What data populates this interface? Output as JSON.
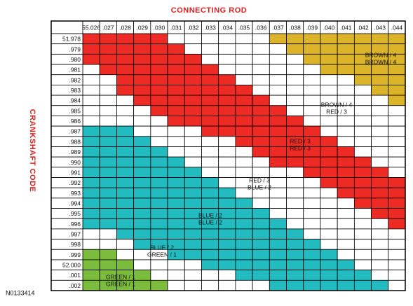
{
  "title": "CONNECTING ROD",
  "side_title": "CRANKSHAFT CODE",
  "figure_id": "N0133414",
  "palette": {
    "red": "#ee2a24",
    "brown": "#dcb42a",
    "blue": "#22bcc0",
    "green": "#7cbc3c",
    "white": "#ffffff"
  },
  "columns": [
    "55.026",
    ".027",
    ".028",
    ".029",
    ".030",
    ".031",
    ".032",
    ".033",
    ".034",
    ".035",
    ".036",
    ".037",
    ".038",
    ".039",
    ".040",
    ".041",
    ".042",
    ".043",
    ".044"
  ],
  "rows": [
    {
      "label": "51.978",
      "cells": [
        "red",
        "red",
        "red",
        "red",
        "red",
        "white",
        "white",
        "white",
        "white",
        "white",
        "white",
        "brown",
        "brown",
        "brown",
        "brown",
        "brown",
        "brown",
        "brown",
        "brown"
      ]
    },
    {
      "label": ".979",
      "cells": [
        "red",
        "red",
        "red",
        "red",
        "red",
        "red",
        "white",
        "white",
        "white",
        "white",
        "white",
        "white",
        "brown",
        "brown",
        "brown",
        "brown",
        "brown",
        "brown",
        "brown"
      ]
    },
    {
      "label": ".980",
      "cells": [
        "red",
        "red",
        "red",
        "red",
        "red",
        "red",
        "red",
        "white",
        "white",
        "white",
        "white",
        "white",
        "white",
        "brown",
        "brown",
        "brown",
        "brown",
        "brown",
        "brown"
      ]
    },
    {
      "label": ".981",
      "cells": [
        "white",
        "red",
        "red",
        "red",
        "red",
        "red",
        "red",
        "red",
        "white",
        "white",
        "white",
        "white",
        "white",
        "white",
        "brown",
        "brown",
        "brown",
        "brown",
        "brown"
      ]
    },
    {
      "label": ".982",
      "cells": [
        "white",
        "white",
        "red",
        "red",
        "red",
        "red",
        "red",
        "red",
        "red",
        "white",
        "white",
        "white",
        "white",
        "white",
        "white",
        "white",
        "brown",
        "brown",
        "brown"
      ]
    },
    {
      "label": ".983",
      "cells": [
        "white",
        "white",
        "red",
        "red",
        "red",
        "red",
        "red",
        "red",
        "red",
        "red",
        "white",
        "white",
        "white",
        "white",
        "white",
        "white",
        "white",
        "brown",
        "brown"
      ]
    },
    {
      "label": ".984",
      "cells": [
        "white",
        "white",
        "white",
        "red",
        "red",
        "red",
        "red",
        "red",
        "red",
        "red",
        "red",
        "white",
        "white",
        "white",
        "white",
        "white",
        "white",
        "white",
        "brown"
      ]
    },
    {
      "label": ".985",
      "cells": [
        "white",
        "white",
        "white",
        "white",
        "red",
        "red",
        "red",
        "red",
        "red",
        "red",
        "red",
        "red",
        "white",
        "white",
        "white",
        "white",
        "white",
        "white",
        "white"
      ]
    },
    {
      "label": ".986",
      "cells": [
        "white",
        "white",
        "white",
        "white",
        "white",
        "red",
        "red",
        "red",
        "red",
        "red",
        "red",
        "red",
        "red",
        "white",
        "white",
        "white",
        "white",
        "white",
        "white"
      ]
    },
    {
      "label": ".987",
      "cells": [
        "blue",
        "blue",
        "blue",
        "white",
        "white",
        "white",
        "white",
        "red",
        "red",
        "red",
        "red",
        "red",
        "red",
        "red",
        "white",
        "white",
        "white",
        "white",
        "white"
      ]
    },
    {
      "label": ".988",
      "cells": [
        "blue",
        "blue",
        "blue",
        "blue",
        "white",
        "white",
        "white",
        "white",
        "white",
        "red",
        "red",
        "red",
        "red",
        "red",
        "red",
        "white",
        "white",
        "white",
        "white"
      ]
    },
    {
      "label": ".989",
      "cells": [
        "blue",
        "blue",
        "blue",
        "blue",
        "blue",
        "white",
        "white",
        "white",
        "white",
        "white",
        "red",
        "red",
        "red",
        "red",
        "red",
        "red",
        "white",
        "white",
        "white"
      ]
    },
    {
      "label": ".990",
      "cells": [
        "blue",
        "blue",
        "blue",
        "blue",
        "blue",
        "blue",
        "white",
        "white",
        "white",
        "white",
        "white",
        "red",
        "red",
        "red",
        "red",
        "red",
        "red",
        "white",
        "white"
      ]
    },
    {
      "label": ".991",
      "cells": [
        "blue",
        "blue",
        "blue",
        "blue",
        "blue",
        "blue",
        "blue",
        "white",
        "white",
        "white",
        "white",
        "white",
        "white",
        "red",
        "red",
        "red",
        "red",
        "red",
        "white"
      ]
    },
    {
      "label": ".992",
      "cells": [
        "blue",
        "blue",
        "blue",
        "blue",
        "blue",
        "blue",
        "blue",
        "blue",
        "white",
        "white",
        "white",
        "white",
        "white",
        "white",
        "red",
        "red",
        "red",
        "red",
        "red"
      ]
    },
    {
      "label": ".993",
      "cells": [
        "blue",
        "blue",
        "blue",
        "blue",
        "blue",
        "blue",
        "blue",
        "blue",
        "blue",
        "white",
        "white",
        "white",
        "white",
        "white",
        "white",
        "red",
        "red",
        "red",
        "red"
      ]
    },
    {
      "label": ".994",
      "cells": [
        "blue",
        "blue",
        "blue",
        "blue",
        "blue",
        "blue",
        "blue",
        "blue",
        "blue",
        "blue",
        "white",
        "white",
        "white",
        "white",
        "white",
        "white",
        "red",
        "red",
        "red"
      ]
    },
    {
      "label": ".995",
      "cells": [
        "blue",
        "blue",
        "blue",
        "blue",
        "blue",
        "blue",
        "blue",
        "blue",
        "blue",
        "blue",
        "blue",
        "white",
        "white",
        "white",
        "white",
        "white",
        "white",
        "red",
        "red"
      ]
    },
    {
      "label": ".996",
      "cells": [
        "blue",
        "blue",
        "blue",
        "blue",
        "blue",
        "blue",
        "blue",
        "blue",
        "blue",
        "blue",
        "blue",
        "blue",
        "white",
        "white",
        "white",
        "white",
        "white",
        "white",
        "red"
      ]
    },
    {
      "label": ".997",
      "cells": [
        "white",
        "white",
        "blue",
        "blue",
        "blue",
        "blue",
        "blue",
        "blue",
        "blue",
        "blue",
        "blue",
        "blue",
        "blue",
        "white",
        "white",
        "white",
        "white",
        "white",
        "white"
      ]
    },
    {
      "label": ".998",
      "cells": [
        "white",
        "white",
        "white",
        "blue",
        "blue",
        "blue",
        "blue",
        "blue",
        "blue",
        "blue",
        "blue",
        "blue",
        "blue",
        "blue",
        "white",
        "white",
        "white",
        "white",
        "white"
      ]
    },
    {
      "label": ".999",
      "cells": [
        "green",
        "green",
        "white",
        "white",
        "white",
        "blue",
        "blue",
        "blue",
        "blue",
        "blue",
        "blue",
        "blue",
        "blue",
        "blue",
        "blue",
        "white",
        "white",
        "white",
        "white"
      ]
    },
    {
      "label": "52.000",
      "cells": [
        "green",
        "green",
        "green",
        "white",
        "white",
        "white",
        "white",
        "blue",
        "blue",
        "blue",
        "blue",
        "blue",
        "blue",
        "blue",
        "blue",
        "blue",
        "white",
        "white",
        "white"
      ]
    },
    {
      "label": ".001",
      "cells": [
        "green",
        "green",
        "green",
        "green",
        "white",
        "white",
        "white",
        "white",
        "white",
        "blue",
        "blue",
        "blue",
        "blue",
        "blue",
        "blue",
        "blue",
        "blue",
        "white",
        "white"
      ]
    },
    {
      "label": ".002",
      "cells": [
        "green",
        "green",
        "green",
        "green",
        "green",
        "white",
        "white",
        "white",
        "white",
        "white",
        "white",
        "blue",
        "blue",
        "blue",
        "blue",
        "blue",
        "blue",
        "blue",
        "white"
      ]
    }
  ],
  "zone_labels": [
    [
      "BROWN / 4",
      "BROWN / 4"
    ],
    [
      "BROWN / 4",
      "RED / 3"
    ],
    [
      "RED / 3",
      "RED / 3"
    ],
    [
      "RED / 3",
      "BLUE / 2"
    ],
    [
      "BLUE / 2",
      "BLUE / 2"
    ],
    [
      "BLUE / 2",
      "GREEN / 1"
    ],
    [
      "GREEN / 1",
      "GREEN / 1"
    ]
  ]
}
